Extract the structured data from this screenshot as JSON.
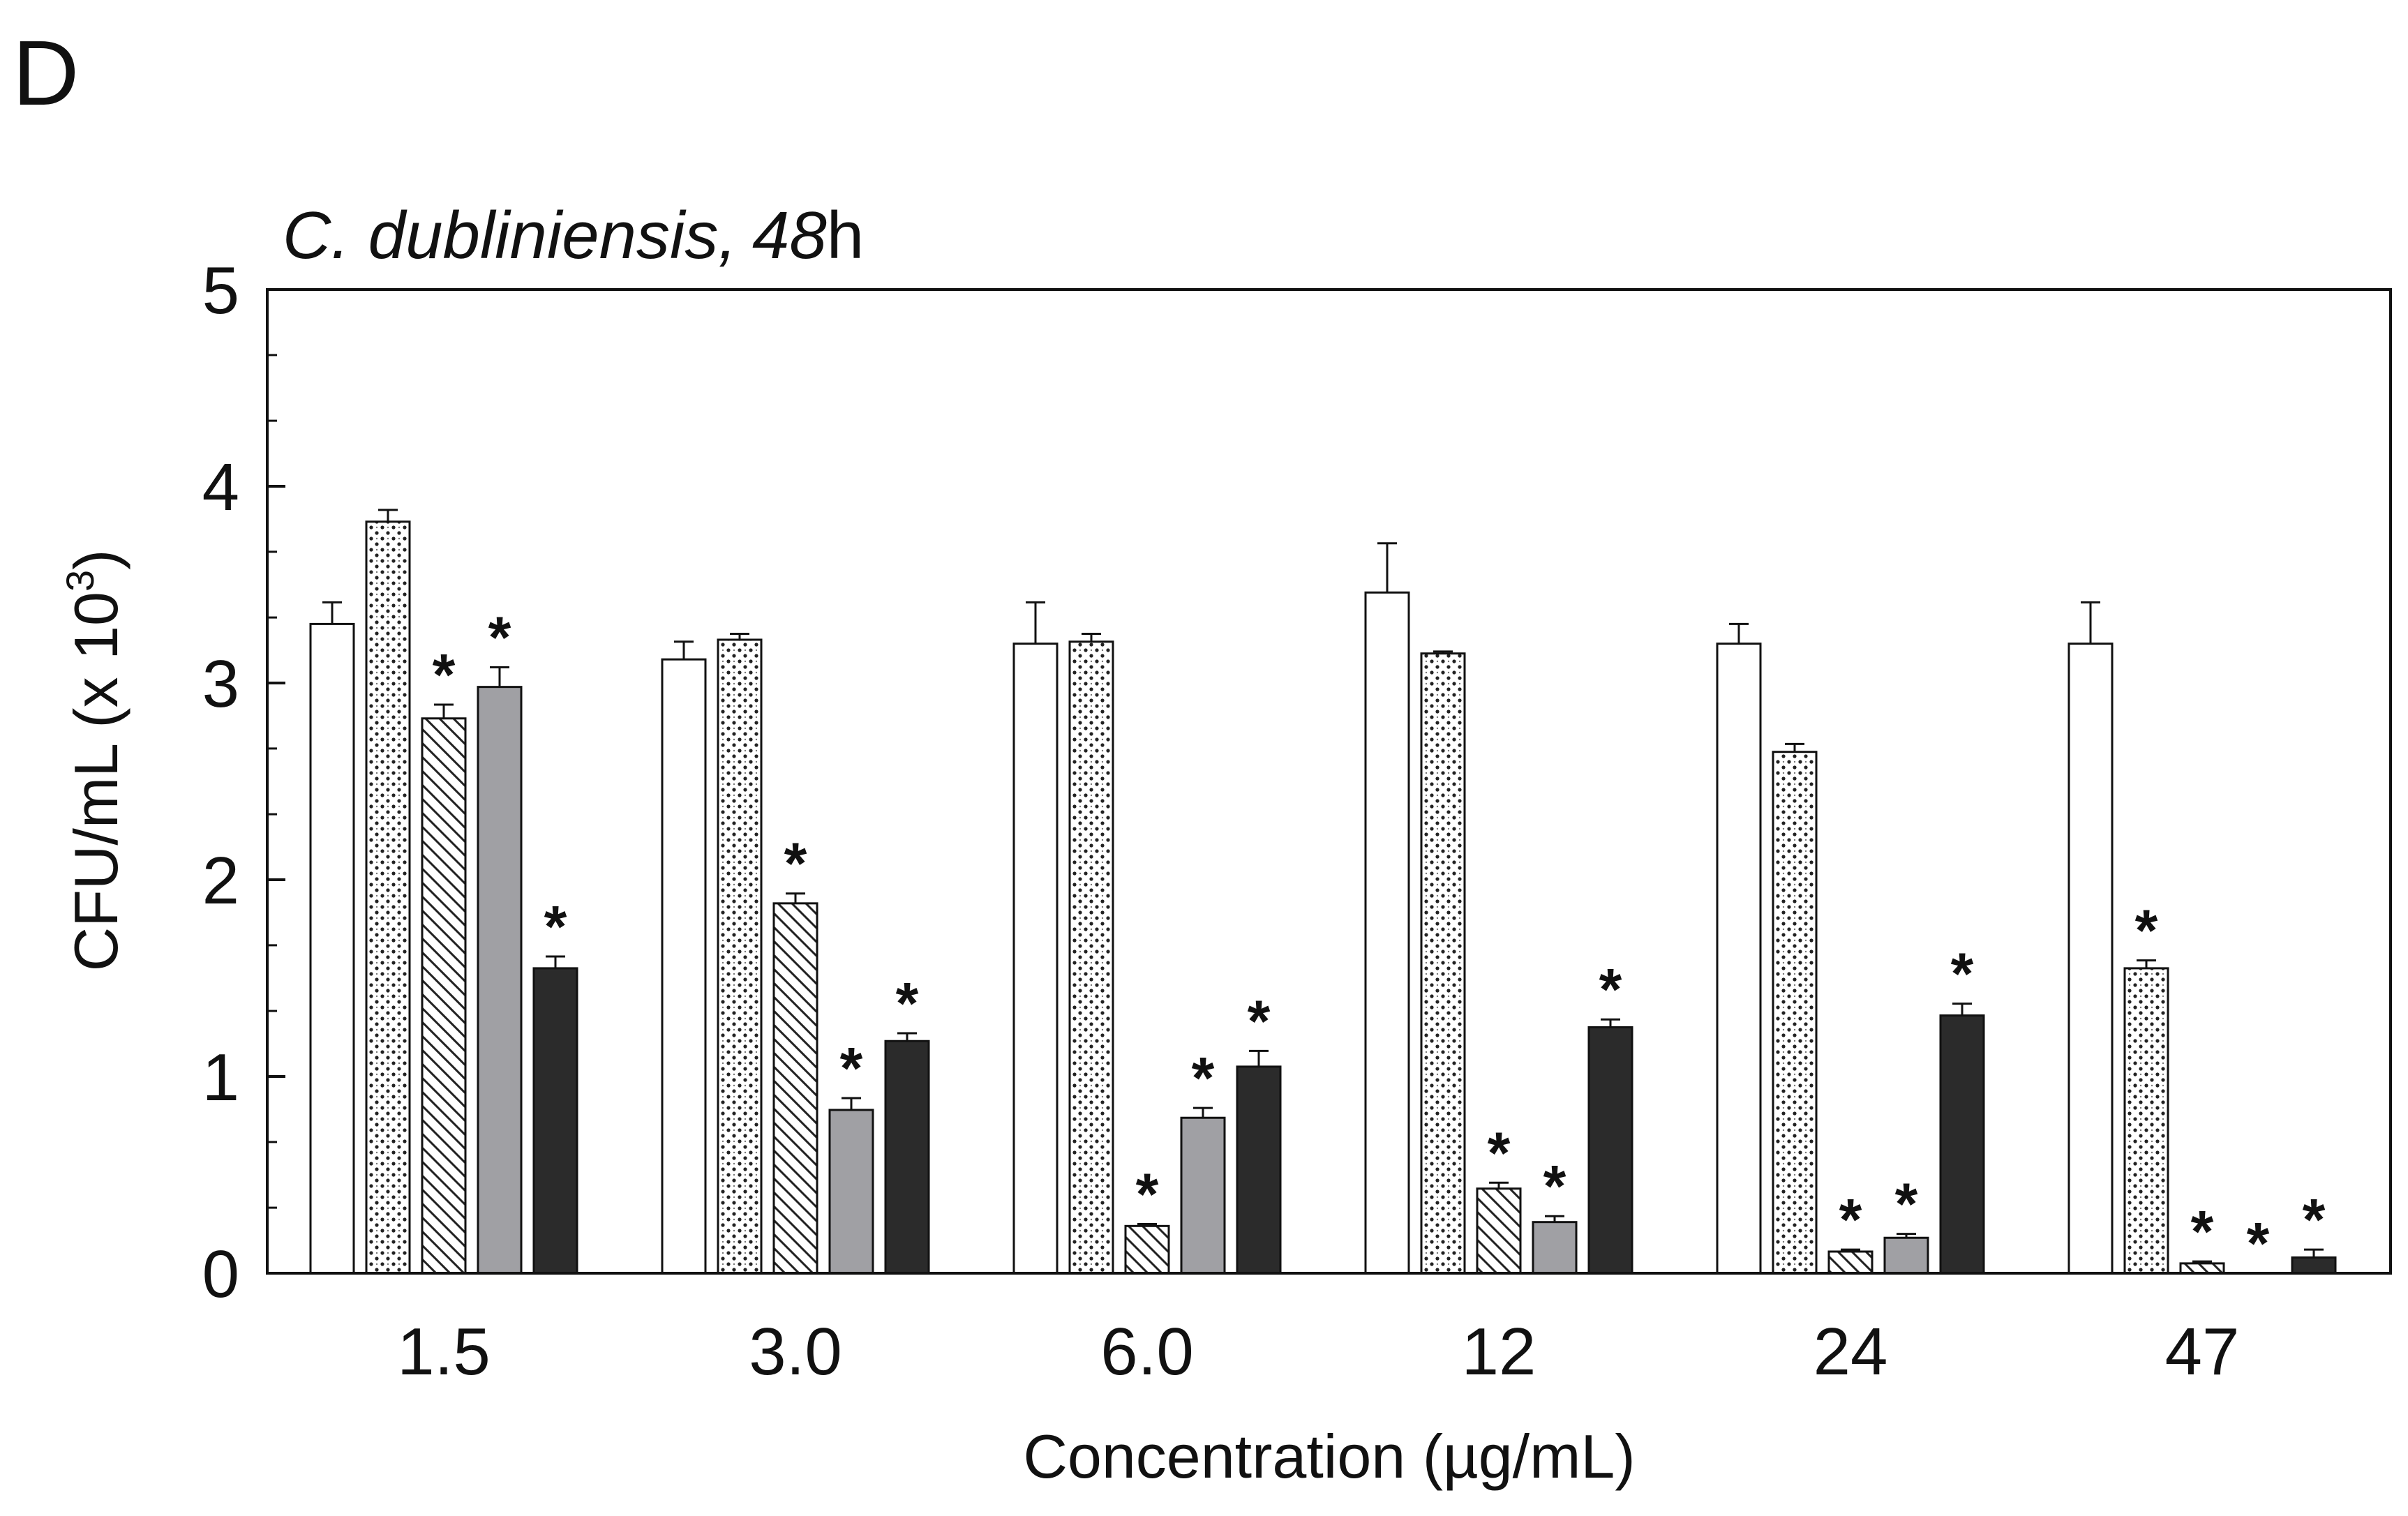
{
  "panel_label": "D",
  "chart_data": {
    "type": "bar",
    "title": {
      "species": "C. dubliniensis,",
      "time_value": "48",
      "time_unit": "h"
    },
    "xlabel": "Concentration (µg/mL)",
    "ylabel": {
      "main": "CFU/mL (x 10",
      "exponent": "3",
      "close": ")"
    },
    "ylim": [
      0,
      5
    ],
    "yticks": [
      "0",
      "1",
      "2",
      "3",
      "4",
      "5"
    ],
    "categories": [
      "1.5",
      "3.0",
      "6.0",
      "12",
      "24",
      "47"
    ],
    "legend": null,
    "series": [
      {
        "name": "series-1",
        "pattern": "white",
        "color": "#ffffff",
        "values": [
          3.3,
          3.12,
          3.2,
          3.46,
          3.2,
          3.2
        ],
        "errors": [
          0.11,
          0.09,
          0.21,
          0.25,
          0.1,
          0.21
        ],
        "significant": [
          false,
          false,
          false,
          false,
          false,
          false
        ]
      },
      {
        "name": "series-2",
        "pattern": "dotted",
        "color": "#ffffff",
        "values": [
          3.82,
          3.22,
          3.21,
          3.15,
          2.65,
          1.55
        ],
        "errors": [
          0.06,
          0.03,
          0.04,
          0.01,
          0.04,
          0.04
        ],
        "significant": [
          false,
          false,
          false,
          false,
          false,
          true
        ]
      },
      {
        "name": "series-3",
        "pattern": "hatched",
        "color": "#ffffff",
        "values": [
          2.82,
          1.88,
          0.24,
          0.43,
          0.11,
          0.05
        ],
        "errors": [
          0.07,
          0.05,
          0.01,
          0.03,
          0.01,
          0.01
        ],
        "significant": [
          true,
          true,
          true,
          true,
          true,
          true
        ]
      },
      {
        "name": "series-4",
        "pattern": "gray",
        "color": "#a0a0a4",
        "values": [
          2.98,
          0.83,
          0.79,
          0.26,
          0.18,
          0.0
        ],
        "errors": [
          0.1,
          0.06,
          0.05,
          0.03,
          0.02,
          0.0
        ],
        "significant": [
          true,
          true,
          true,
          true,
          true,
          true
        ]
      },
      {
        "name": "series-5",
        "pattern": "black",
        "color": "#2b2b2b",
        "values": [
          1.55,
          1.18,
          1.05,
          1.25,
          1.31,
          0.08
        ],
        "errors": [
          0.06,
          0.04,
          0.08,
          0.04,
          0.06,
          0.04
        ],
        "significant": [
          true,
          true,
          true,
          true,
          true,
          true
        ]
      }
    ],
    "significance_marker": "*",
    "grid": false
  }
}
